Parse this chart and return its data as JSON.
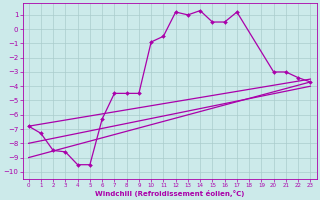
{
  "xlabel": "Windchill (Refroidissement éolien,°C)",
  "bg_color": "#cceaea",
  "line_color": "#aa00aa",
  "grid_color": "#aacccc",
  "xlim": [
    -0.5,
    23.5
  ],
  "ylim": [
    -10.5,
    1.8
  ],
  "xticks": [
    0,
    1,
    2,
    3,
    4,
    5,
    6,
    7,
    8,
    9,
    10,
    11,
    12,
    13,
    14,
    15,
    16,
    17,
    18,
    19,
    20,
    21,
    22,
    23
  ],
  "yticks": [
    1,
    0,
    -1,
    -2,
    -3,
    -4,
    -5,
    -6,
    -7,
    -8,
    -9,
    -10
  ],
  "line1_x": [
    0,
    1,
    2,
    3,
    4,
    5,
    6,
    7,
    8,
    9,
    10,
    11,
    12,
    13,
    14,
    15,
    16,
    17,
    20,
    21,
    22,
    23
  ],
  "line1_y": [
    -6.8,
    -7.3,
    -8.5,
    -8.6,
    -9.5,
    -9.5,
    -6.3,
    -4.5,
    -4.5,
    -4.5,
    -0.9,
    -0.5,
    1.2,
    1.0,
    1.3,
    0.5,
    0.5,
    1.2,
    -3.0,
    -3.0,
    -3.4,
    -3.7
  ],
  "line2_x": [
    0,
    23
  ],
  "line2_y": [
    -6.8,
    -3.5
  ],
  "line3_x": [
    0,
    23
  ],
  "line3_y": [
    -8.0,
    -4.0
  ],
  "line4_x": [
    0,
    23
  ],
  "line4_y": [
    -9.0,
    -3.7
  ]
}
